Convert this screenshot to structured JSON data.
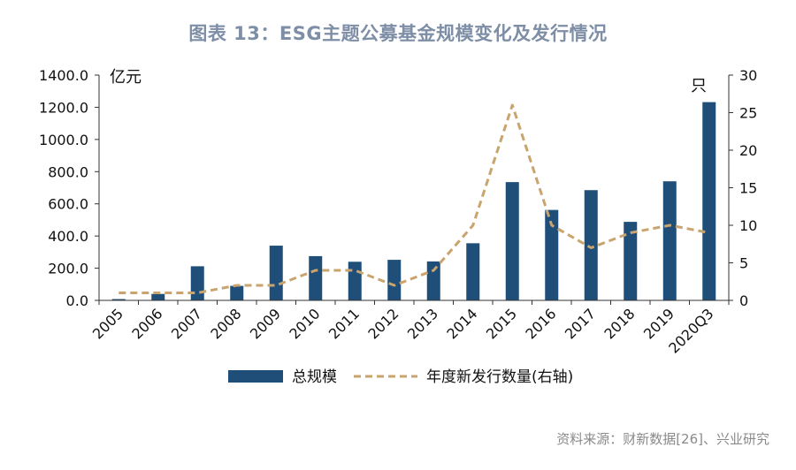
{
  "title": "图表 13：ESG主题公募基金规模变化及发行情况",
  "source": "资料来源：财新数据[26]、兴业研究",
  "chart_data": {
    "type": "bar",
    "categories": [
      "2005",
      "2006",
      "2007",
      "2008",
      "2009",
      "2010",
      "2011",
      "2012",
      "2013",
      "2014",
      "2015",
      "2016",
      "2017",
      "2018",
      "2019",
      "2020Q3"
    ],
    "series": [
      {
        "name": "总规模",
        "type": "bar",
        "axis": "left",
        "color": "#1f4e79",
        "values": [
          8,
          40,
          212,
          90,
          340,
          275,
          240,
          252,
          242,
          355,
          735,
          562,
          685,
          488,
          740,
          1232
        ]
      },
      {
        "name": "年度新发行数量(右轴)",
        "type": "line",
        "style": "dashed",
        "axis": "right",
        "color": "#c9a46e",
        "values": [
          1,
          1,
          1,
          2,
          2,
          4,
          4,
          2,
          4,
          10,
          26,
          10,
          7,
          9,
          10,
          9
        ]
      }
    ],
    "y_left": {
      "unit": "亿元",
      "ylim": [
        0,
        1400
      ],
      "ticks": [
        "0.0",
        "200.0",
        "400.0",
        "600.0",
        "800.0",
        "1000.0",
        "1200.0",
        "1400.0"
      ]
    },
    "y_right": {
      "unit": "只",
      "ylim": [
        0,
        30
      ],
      "ticks": [
        "0",
        "5",
        "10",
        "15",
        "20",
        "25",
        "30"
      ]
    },
    "grid": false,
    "legend_position": "bottom"
  }
}
